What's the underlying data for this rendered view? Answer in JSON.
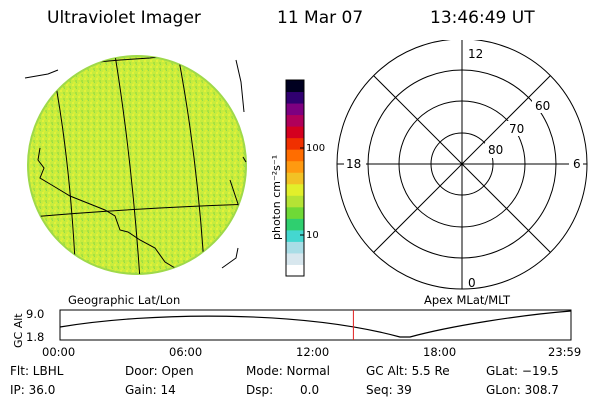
{
  "header": {
    "title": "Ultraviolet Imager",
    "date": "11 Mar 07",
    "time": "13:46:49 UT"
  },
  "colorbar": {
    "unit": "photon cm⁻²s⁻¹",
    "ticks": [
      "100",
      "10"
    ],
    "colors": [
      "#ffffff",
      "#d8e7ee",
      "#a9dde6",
      "#44d7d0",
      "#2fcf6f",
      "#6fd936",
      "#b5e335",
      "#e2ef2b",
      "#f2c225",
      "#ff9a10",
      "#ff6d00",
      "#f03000",
      "#d4001f",
      "#b0005a",
      "#7d0080",
      "#300070",
      "#000020"
    ]
  },
  "image_panel": {
    "caption": "Geographic Lat/Lon",
    "fill_color": "#c5ea3c"
  },
  "polar_plot": {
    "caption": "Apex MLat/MLT",
    "mlt_labels": {
      "top": "12",
      "left": "18",
      "right": "6",
      "bottom": "0"
    },
    "lat_labels": [
      "60",
      "70",
      "80"
    ]
  },
  "timeline": {
    "ylabel": "GC Alt",
    "ymax": "9.0",
    "ymin": "1.8",
    "ticks": [
      "00:00",
      "06:00",
      "12:00",
      "18:00",
      "23:59"
    ],
    "marker_hour": 13.78,
    "marker_color": "#e02020"
  },
  "info": {
    "flt": "Flt: LBHL",
    "door": "Door: Open",
    "mode": "Mode: Normal",
    "gcalt": "GC Alt: 5.5 Re",
    "glat": "GLat: −19.5",
    "ip": "IP: 36.0",
    "gain": "Gain: 14",
    "dsp_label": "Dsp:",
    "dsp_value": "0.0",
    "seq": "Seq: 39",
    "glon": "GLon: 308.7"
  }
}
